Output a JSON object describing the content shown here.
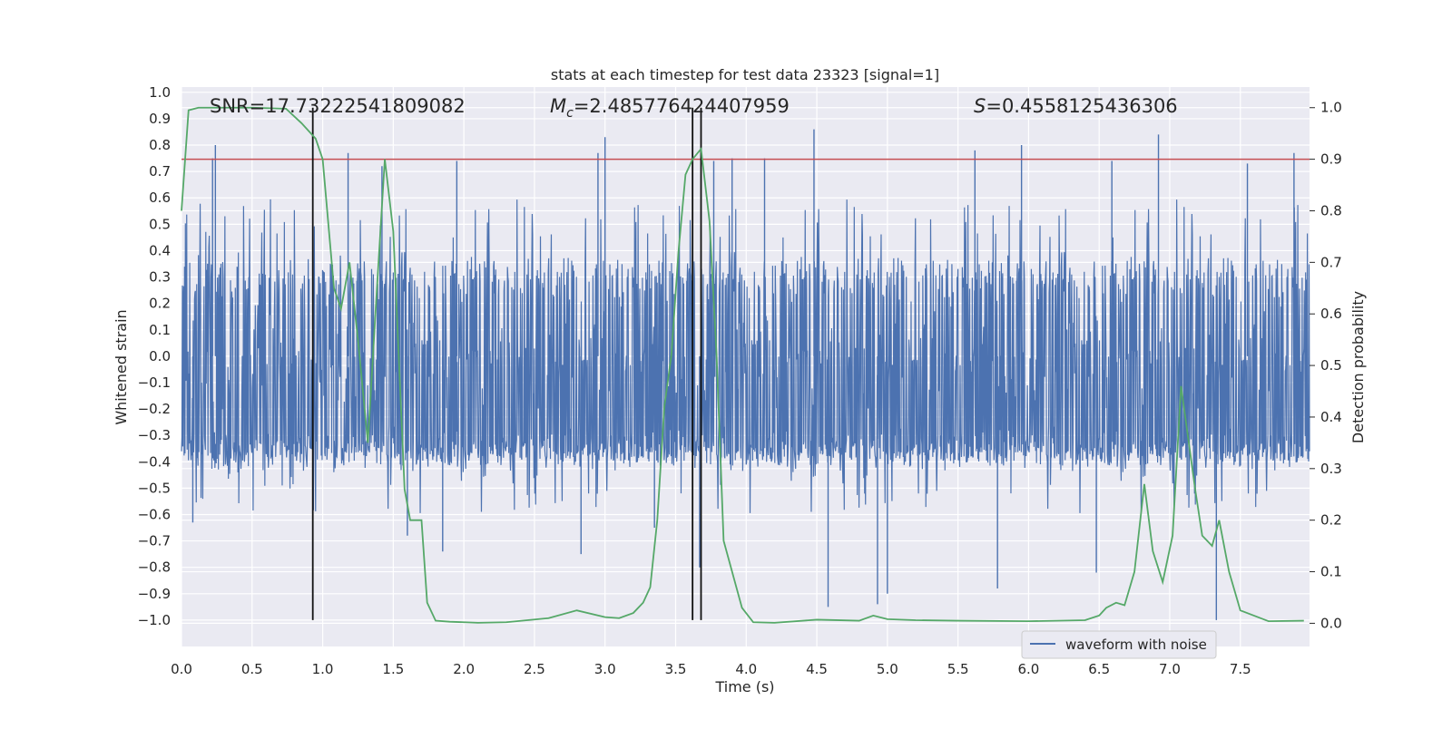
{
  "chart_data": {
    "type": "line",
    "title": "stats at each timestep for test data 23323 [signal=1]",
    "xlabel": "Time (s)",
    "ylabel": "Whitened strain",
    "y2label": "Detection probability",
    "xlim": [
      0,
      7.99
    ],
    "ylim": [
      -1.1,
      1.02
    ],
    "y2lim": [
      -0.045,
      1.04
    ],
    "xticks": [
      0.0,
      0.5,
      1.0,
      1.5,
      2.0,
      2.5,
      3.0,
      3.5,
      4.0,
      4.5,
      5.0,
      5.5,
      6.0,
      6.5,
      7.0,
      7.5
    ],
    "xtick_labels": [
      "0.0",
      "0.5",
      "1.0",
      "1.5",
      "2.0",
      "2.5",
      "3.0",
      "3.5",
      "4.0",
      "4.5",
      "5.0",
      "5.5",
      "6.0",
      "6.5",
      "7.0",
      "7.5"
    ],
    "yticks": [
      1.0,
      0.9,
      0.8,
      0.7,
      0.6,
      0.5,
      0.4,
      0.3,
      0.2,
      0.1,
      0.0,
      -0.1,
      -0.2,
      -0.3,
      -0.4,
      -0.5,
      -0.6,
      -0.7,
      -0.8,
      -0.9,
      -1.0
    ],
    "ytick_labels": [
      "1.0",
      "0.9",
      "0.8",
      "0.7",
      "0.6",
      "0.5",
      "0.4",
      "0.3",
      "0.2",
      "0.1",
      "0.0",
      "−0.1",
      "−0.2",
      "−0.3",
      "−0.4",
      "−0.5",
      "−0.6",
      "−0.7",
      "−0.8",
      "−0.9",
      "−1.0"
    ],
    "y2ticks": [
      1.0,
      0.9,
      0.8,
      0.7,
      0.6,
      0.5,
      0.4,
      0.3,
      0.2,
      0.1,
      0.0
    ],
    "y2tick_labels": [
      "1.0",
      "0.9",
      "0.8",
      "0.7",
      "0.6",
      "0.5",
      "0.4",
      "0.3",
      "0.2",
      "0.1",
      "0.0"
    ],
    "annotations": {
      "snr": "SNR=17.73222541809082",
      "mc_symbol": "M",
      "mc_sub": "c",
      "mc_value": "=2.485776424407959",
      "s_symbol": "S",
      "s_value": "=0.4558125436306"
    },
    "threshold": {
      "value": 0.9,
      "axis": "right",
      "color": "#c44e52"
    },
    "vertical_markers": [
      0.93,
      3.62,
      3.68
    ],
    "legend": {
      "label": "waveform with noise",
      "position": "lower-right"
    },
    "series": [
      {
        "name": "waveform with noise",
        "axis": "left",
        "color": "#4c72b0",
        "style": "dense noisy strain, band approx -0.42 to 0.35",
        "peaks": [
          {
            "x": 0.22,
            "y": 0.75
          },
          {
            "x": 0.24,
            "y": 0.8
          },
          {
            "x": 0.08,
            "y": -0.63
          },
          {
            "x": 0.93,
            "y": -0.93
          },
          {
            "x": 1.18,
            "y": 0.77
          },
          {
            "x": 1.42,
            "y": 0.72
          },
          {
            "x": 1.6,
            "y": -0.68
          },
          {
            "x": 1.95,
            "y": 0.74
          },
          {
            "x": 1.85,
            "y": -0.74
          },
          {
            "x": 2.83,
            "y": -0.75
          },
          {
            "x": 2.95,
            "y": 0.77
          },
          {
            "x": 3.0,
            "y": 0.83
          },
          {
            "x": 3.35,
            "y": -0.65
          },
          {
            "x": 3.67,
            "y": -0.8
          },
          {
            "x": 3.77,
            "y": 0.74
          },
          {
            "x": 3.9,
            "y": 0.75
          },
          {
            "x": 4.13,
            "y": 0.75
          },
          {
            "x": 4.48,
            "y": 0.86
          },
          {
            "x": 4.58,
            "y": -0.95
          },
          {
            "x": 4.93,
            "y": -0.94
          },
          {
            "x": 5.0,
            "y": -0.9
          },
          {
            "x": 5.62,
            "y": 0.78
          },
          {
            "x": 5.78,
            "y": -0.88
          },
          {
            "x": 5.95,
            "y": 0.8
          },
          {
            "x": 6.48,
            "y": -0.82
          },
          {
            "x": 6.59,
            "y": 0.74
          },
          {
            "x": 6.92,
            "y": 0.84
          },
          {
            "x": 7.33,
            "y": -1.0
          },
          {
            "x": 7.55,
            "y": 0.73
          },
          {
            "x": 7.88,
            "y": 0.77
          }
        ]
      },
      {
        "name": "",
        "axis": "right",
        "color": "#55a868",
        "x": [
          0.0,
          0.05,
          0.12,
          0.3,
          0.5,
          0.74,
          0.85,
          0.95,
          1.0,
          1.08,
          1.13,
          1.19,
          1.25,
          1.32,
          1.38,
          1.44,
          1.5,
          1.58,
          1.62,
          1.7,
          1.74,
          1.8,
          1.9,
          2.1,
          2.3,
          2.6,
          2.8,
          3.0,
          3.1,
          3.2,
          3.27,
          3.32,
          3.37,
          3.42,
          3.47,
          3.52,
          3.57,
          3.62,
          3.68,
          3.74,
          3.79,
          3.84,
          3.9,
          3.97,
          4.05,
          4.2,
          4.5,
          4.8,
          4.9,
          5.0,
          5.2,
          5.5,
          6.0,
          6.4,
          6.5,
          6.55,
          6.62,
          6.68,
          6.75,
          6.82,
          6.88,
          6.95,
          7.02,
          7.08,
          7.13,
          7.18,
          7.23,
          7.3,
          7.35,
          7.42,
          7.5,
          7.7,
          7.95
        ],
        "y": [
          0.8,
          0.995,
          1.0,
          1.0,
          1.0,
          0.998,
          0.97,
          0.94,
          0.9,
          0.65,
          0.61,
          0.7,
          0.55,
          0.35,
          0.63,
          0.9,
          0.76,
          0.26,
          0.2,
          0.2,
          0.04,
          0.005,
          0.003,
          0.001,
          0.002,
          0.01,
          0.025,
          0.012,
          0.01,
          0.02,
          0.04,
          0.07,
          0.2,
          0.42,
          0.52,
          0.72,
          0.87,
          0.9,
          0.92,
          0.78,
          0.52,
          0.16,
          0.1,
          0.03,
          0.002,
          0.001,
          0.007,
          0.005,
          0.015,
          0.008,
          0.006,
          0.005,
          0.004,
          0.006,
          0.015,
          0.03,
          0.04,
          0.035,
          0.1,
          0.27,
          0.14,
          0.08,
          0.17,
          0.46,
          0.36,
          0.26,
          0.17,
          0.15,
          0.2,
          0.1,
          0.025,
          0.004,
          0.005
        ]
      }
    ]
  }
}
